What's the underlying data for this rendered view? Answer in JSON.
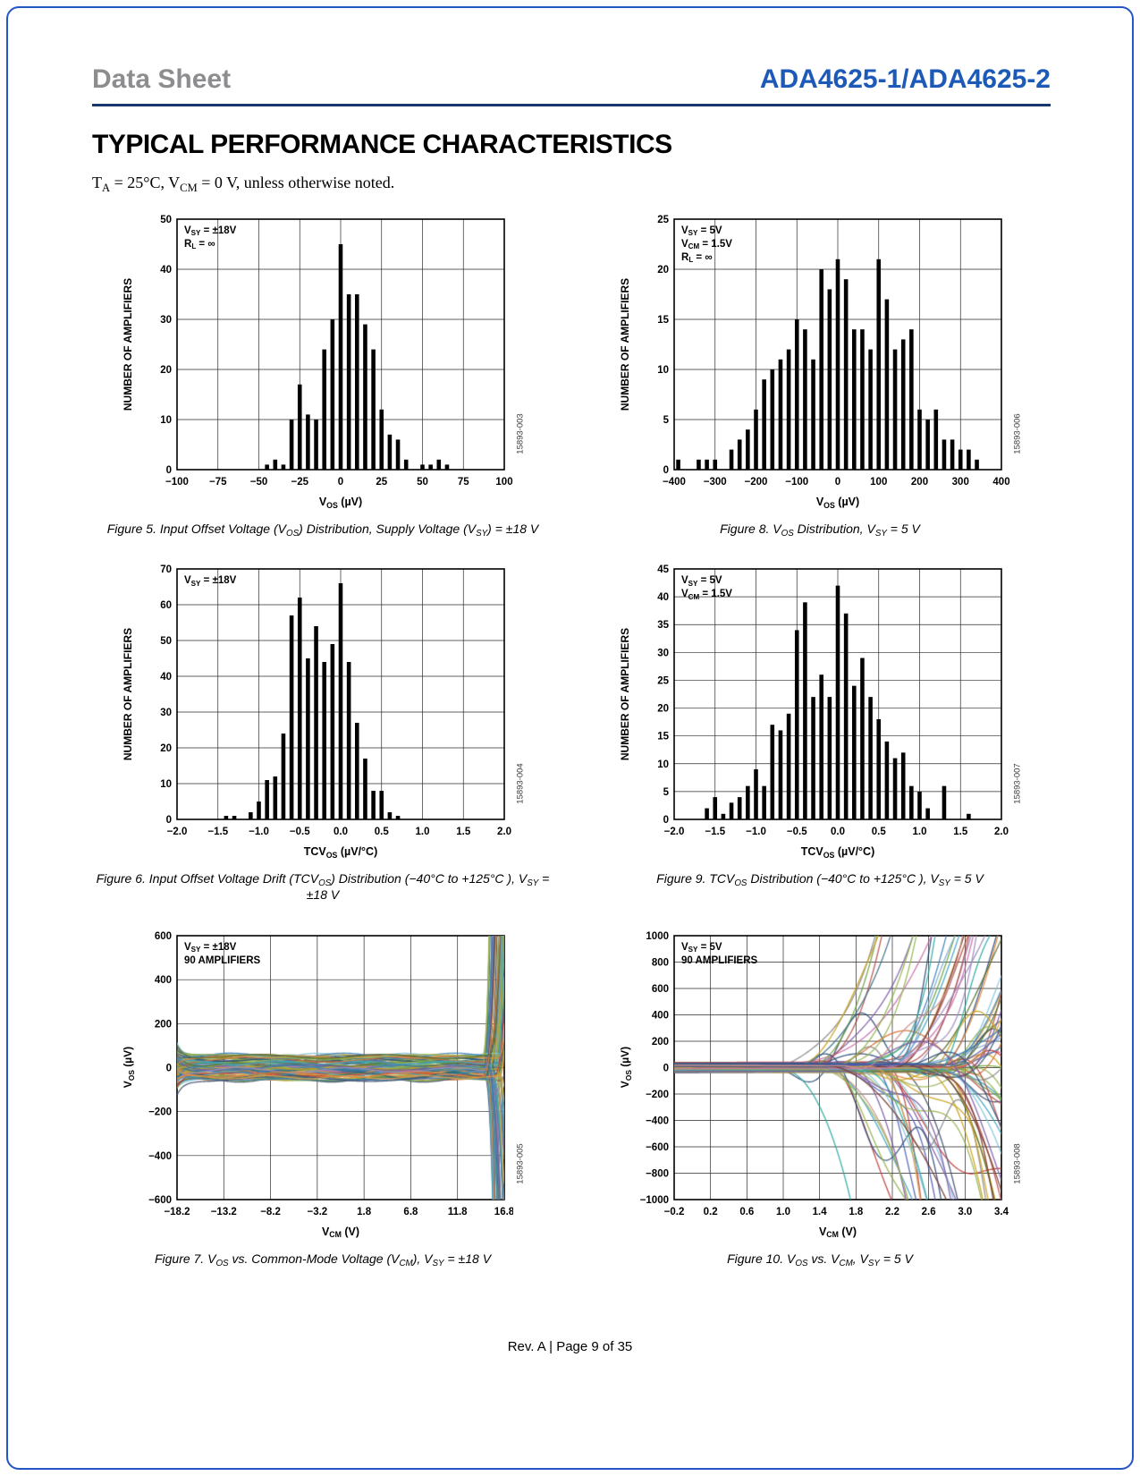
{
  "page": {
    "header_left": "Data Sheet",
    "header_right": "ADA4625-1/ADA4625-2",
    "section_title": "TYPICAL PERFORMANCE CHARACTERISTICS",
    "conditions": "T~A~ = 25°C, V~CM~ = 0 V, unless otherwise noted.",
    "footer": "Rev. A | Page 9 of 35"
  },
  "colors": {
    "accent_blue": "#1d5ab8",
    "frame_blue": "#2456c8",
    "rule_navy": "#16386e",
    "header_gray": "#8d8d90",
    "bar_color": "#000000",
    "grid_color": "#2b2b2b",
    "trace_palette": [
      "#d96c2c",
      "#3e7fb8",
      "#6fa03c",
      "#c23b3b",
      "#7d5ba6",
      "#2ea8a0",
      "#caa11b",
      "#4f5fb5",
      "#a8601f",
      "#7fa8d0",
      "#8fb348",
      "#c76fa8",
      "#3d6f85",
      "#b44d44",
      "#97b353",
      "#6f5b9e",
      "#3fa3c4",
      "#e08840",
      "#2c4c78",
      "#77392f",
      "#5a6e2a",
      "#1f6a7c",
      "#9b8bc0",
      "#85c4da",
      "#c98f8a",
      "#44506e",
      "#8a8a8a",
      "#d9a04a"
    ]
  },
  "chart_data": [
    {
      "id": "figure-5",
      "type": "bar",
      "caption": "Figure 5. Input Offset Voltage (V~OS~) Distribution, Supply Voltage (V~SY~) = ±18 V",
      "code": "15893-003",
      "annotation": [
        "V~SY~ = ±18V",
        "R~L~ = ∞"
      ],
      "xlabel": "V~OS~ (µV)",
      "ylabel": "NUMBER OF AMPLIFIERS",
      "xlim": [
        -100,
        100
      ],
      "ylim": [
        0,
        50
      ],
      "xticks": [
        -100,
        -75,
        -50,
        -25,
        0,
        25,
        50,
        75,
        100
      ],
      "xtick_labels": [
        "−100",
        "−75",
        "−50",
        "−25",
        "0",
        "25",
        "50",
        "75",
        "100"
      ],
      "yticks": [
        0,
        10,
        20,
        30,
        40,
        50
      ],
      "ytick_labels": [
        "0",
        "10",
        "20",
        "30",
        "40",
        "50"
      ],
      "bin_width": 5,
      "bins": {
        "x": [
          -45,
          -40,
          -35,
          -30,
          -25,
          -20,
          -15,
          -10,
          -5,
          0,
          5,
          10,
          15,
          20,
          25,
          30,
          35,
          40,
          50,
          55,
          60,
          65
        ],
        "counts": [
          1,
          2,
          1,
          10,
          17,
          11,
          10,
          24,
          30,
          45,
          35,
          35,
          29,
          24,
          12,
          7,
          6,
          2,
          1,
          1,
          2,
          1
        ]
      }
    },
    {
      "id": "figure-8",
      "type": "bar",
      "caption": "Figure 8. V~OS~ Distribution, V~SY~ = 5 V",
      "code": "15893-006",
      "annotation": [
        "V~SY~ = 5V",
        "V~CM~ = 1.5V",
        "R~L~ = ∞"
      ],
      "xlabel": "V~OS~ (µV)",
      "ylabel": "NUMBER OF AMPLIFIERS",
      "xlim": [
        -400,
        400
      ],
      "ylim": [
        0,
        25
      ],
      "xticks": [
        -400,
        -300,
        -200,
        -100,
        0,
        100,
        200,
        300,
        400
      ],
      "xtick_labels": [
        "−400",
        "−300",
        "−200",
        "−100",
        "0",
        "100",
        "200",
        "300",
        "400"
      ],
      "yticks": [
        0,
        5,
        10,
        15,
        20,
        25
      ],
      "ytick_labels": [
        "0",
        "5",
        "10",
        "15",
        "20",
        "25"
      ],
      "bin_width": 20,
      "bins": {
        "x": [
          -390,
          -340,
          -320,
          -300,
          -260,
          -240,
          -220,
          -200,
          -180,
          -160,
          -140,
          -120,
          -100,
          -80,
          -60,
          -40,
          -20,
          0,
          20,
          40,
          60,
          80,
          100,
          120,
          140,
          160,
          180,
          200,
          220,
          240,
          260,
          280,
          300,
          320,
          340
        ],
        "counts": [
          1,
          1,
          1,
          1,
          2,
          3,
          4,
          6,
          9,
          10,
          11,
          12,
          15,
          14,
          11,
          20,
          18,
          21,
          19,
          14,
          14,
          12,
          21,
          17,
          12,
          13,
          14,
          6,
          5,
          6,
          3,
          3,
          2,
          2,
          1
        ]
      }
    },
    {
      "id": "figure-6",
      "type": "bar",
      "caption": "Figure 6. Input Offset Voltage Drift (TCV~OS~) Distribution (−40°C to +125°C ), V~SY~ = ±18 V",
      "code": "15893-004",
      "annotation": [
        "V~SY~ = ±18V"
      ],
      "xlabel": "TCV~OS~ (µV/°C)",
      "ylabel": "NUMBER OF AMPLIFIERS",
      "xlim": [
        -2,
        2
      ],
      "ylim": [
        0,
        70
      ],
      "xticks": [
        -2,
        -1.5,
        -1,
        -0.5,
        0,
        0.5,
        1,
        1.5,
        2
      ],
      "xtick_labels": [
        "−2.0",
        "−1.5",
        "−1.0",
        "−0.5",
        "0.0",
        "0.5",
        "1.0",
        "1.5",
        "2.0"
      ],
      "yticks": [
        0,
        10,
        20,
        30,
        40,
        50,
        60,
        70
      ],
      "ytick_labels": [
        "0",
        "10",
        "20",
        "30",
        "40",
        "50",
        "60",
        "70"
      ],
      "bin_width": 0.1,
      "bins": {
        "x": [
          -1.4,
          -1.3,
          -1.1,
          -1.0,
          -0.9,
          -0.8,
          -0.7,
          -0.6,
          -0.5,
          -0.4,
          -0.3,
          -0.2,
          -0.1,
          0.0,
          0.1,
          0.2,
          0.3,
          0.4,
          0.5,
          0.6,
          0.7
        ],
        "counts": [
          1,
          1,
          2,
          5,
          11,
          12,
          24,
          57,
          62,
          45,
          54,
          44,
          49,
          66,
          44,
          27,
          17,
          8,
          8,
          2,
          1
        ]
      }
    },
    {
      "id": "figure-9",
      "type": "bar",
      "caption": "Figure 9. TCV~OS~ Distribution (−40°C to +125°C ), V~SY~ = 5 V",
      "code": "15893-007",
      "annotation": [
        "V~SY~ = 5V",
        "V~CM~ = 1.5V"
      ],
      "xlabel": "TCV~OS~ (µV/°C)",
      "ylabel": "NUMBER OF AMPLIFIERS",
      "xlim": [
        -2,
        2
      ],
      "ylim": [
        0,
        45
      ],
      "xticks": [
        -2,
        -1.5,
        -1,
        -0.5,
        0,
        0.5,
        1,
        1.5,
        2
      ],
      "xtick_labels": [
        "−2.0",
        "−1.5",
        "−1.0",
        "−0.5",
        "0.0",
        "0.5",
        "1.0",
        "1.5",
        "2.0"
      ],
      "yticks": [
        0,
        5,
        10,
        15,
        20,
        25,
        30,
        35,
        40,
        45
      ],
      "ytick_labels": [
        "0",
        "5",
        "10",
        "15",
        "20",
        "25",
        "30",
        "35",
        "40",
        "45"
      ],
      "bin_width": 0.1,
      "bins": {
        "x": [
          -1.6,
          -1.5,
          -1.4,
          -1.3,
          -1.2,
          -1.1,
          -1.0,
          -0.9,
          -0.8,
          -0.7,
          -0.6,
          -0.5,
          -0.4,
          -0.3,
          -0.2,
          -0.1,
          0.0,
          0.1,
          0.2,
          0.3,
          0.4,
          0.5,
          0.6,
          0.7,
          0.8,
          0.9,
          1.0,
          1.1,
          1.3,
          1.6
        ],
        "counts": [
          2,
          4,
          1,
          3,
          4,
          6,
          9,
          6,
          17,
          16,
          19,
          34,
          39,
          22,
          26,
          22,
          42,
          37,
          24,
          29,
          22,
          18,
          14,
          11,
          12,
          6,
          5,
          2,
          6,
          1
        ]
      }
    },
    {
      "id": "figure-7",
      "type": "line",
      "caption": "Figure 7. V~OS~ vs. Common-Mode Voltage (V~CM~), V~SY~ = ±18 V",
      "code": "15893-005",
      "annotation": [
        "V~SY~ = ±18V",
        "90 AMPLIFIERS"
      ],
      "xlabel": "V~CM~ (V)",
      "ylabel": "V~OS~ (µV)",
      "xlim": [
        -18.2,
        16.8
      ],
      "ylim": [
        -600,
        600
      ],
      "xticks": [
        -18.2,
        -13.2,
        -8.2,
        -3.2,
        1.8,
        6.8,
        11.8,
        16.8
      ],
      "xtick_labels": [
        "−18.2",
        "−13.2",
        "−8.2",
        "−3.2",
        "1.8",
        "6.8",
        "11.8",
        "16.8"
      ],
      "yticks": [
        -600,
        -400,
        -200,
        0,
        200,
        400,
        600
      ],
      "ytick_labels": [
        "−600",
        "−400",
        "−200",
        "0",
        "200",
        "400",
        "600"
      ],
      "series_count": 90,
      "series_model": {
        "seed": 40071,
        "flat_band_uV": 55,
        "left_flare_uV": 70,
        "breakdown_x_start": 14.3,
        "breakdown_x_end": 16.4,
        "osc": 0,
        "description": "90 amplifier traces: V_OS nearly constant within about ±60 µV across the common-mode range, diverging sharply toward and beyond ±600 µV as V_CM approaches the positive rail near +16 V."
      }
    },
    {
      "id": "figure-10",
      "type": "line",
      "caption": "Figure 10. V~OS~ vs. V~CM~, V~SY~ = 5 V",
      "code": "15893-008",
      "annotation": [
        "V~SY~ = 5V",
        "90 AMPLIFIERS"
      ],
      "xlabel": "V~CM~ (V)",
      "ylabel": "V~OS~ (µV)",
      "xlim": [
        -0.2,
        3.4
      ],
      "ylim": [
        -1000,
        1000
      ],
      "xticks": [
        -0.2,
        0.2,
        0.6,
        1.0,
        1.4,
        1.8,
        2.2,
        2.6,
        3.0,
        3.4
      ],
      "xtick_labels": [
        "−0.2",
        "0.2",
        "0.6",
        "1.0",
        "1.4",
        "1.8",
        "2.2",
        "2.6",
        "3.0",
        "3.4"
      ],
      "yticks": [
        -1000,
        -800,
        -600,
        -400,
        -200,
        0,
        200,
        400,
        600,
        800,
        1000
      ],
      "ytick_labels": [
        "−1000",
        "−800",
        "−600",
        "−400",
        "−200",
        "0",
        "200",
        "400",
        "600",
        "800",
        "1000"
      ],
      "series_count": 90,
      "series_model": {
        "seed": 80102,
        "flat_band_uV": 35,
        "left_flare_uV": 0,
        "breakdown_x_start": 0.9,
        "breakdown_x_end": 3.0,
        "osc": 1,
        "description": "90 amplifier traces: V_OS near 0 µV at low common-mode voltage, fanning out and crossing beyond ±1000 µV as V_CM approaches the positive rail near 2.6 V to 3.4 V."
      }
    }
  ]
}
